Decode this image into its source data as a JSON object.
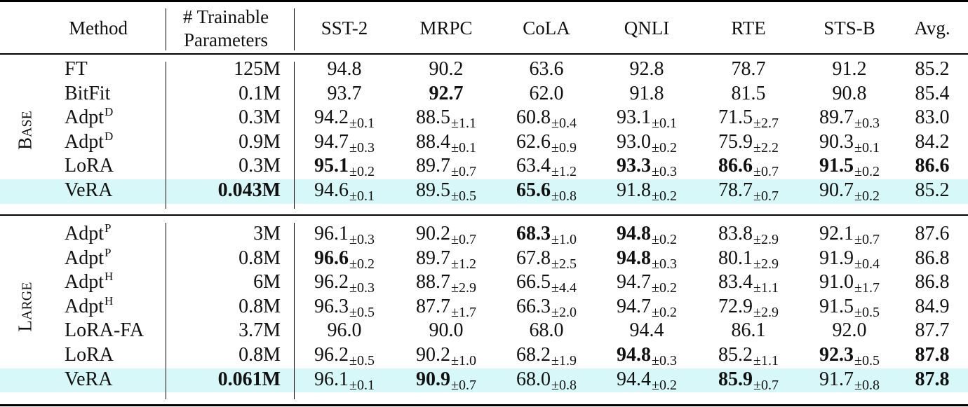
{
  "header": {
    "method": "Method",
    "params_line1": "# Trainable",
    "params_line2": "Parameters",
    "tasks": [
      "SST-2",
      "MRPC",
      "CoLA",
      "QNLI",
      "RTE",
      "STS-B"
    ],
    "avg": "Avg."
  },
  "groups": [
    {
      "label_initial": "B",
      "label_rest": "ASE",
      "rows": [
        {
          "method": "FT",
          "sup": "",
          "params": "125M",
          "params_bold": false,
          "highlight": false,
          "scores": [
            {
              "v": "94.8",
              "s": "",
              "b": false
            },
            {
              "v": "90.2",
              "s": "",
              "b": false
            },
            {
              "v": "63.6",
              "s": "",
              "b": false
            },
            {
              "v": "92.8",
              "s": "",
              "b": false
            },
            {
              "v": "78.7",
              "s": "",
              "b": false
            },
            {
              "v": "91.2",
              "s": "",
              "b": false
            }
          ],
          "avg": "85.2",
          "avg_bold": false
        },
        {
          "method": "BitFit",
          "sup": "",
          "params": "0.1M",
          "params_bold": false,
          "highlight": false,
          "scores": [
            {
              "v": "93.7",
              "s": "",
              "b": false
            },
            {
              "v": "92.7",
              "s": "",
              "b": true
            },
            {
              "v": "62.0",
              "s": "",
              "b": false
            },
            {
              "v": "91.8",
              "s": "",
              "b": false
            },
            {
              "v": "81.5",
              "s": "",
              "b": false
            },
            {
              "v": "90.8",
              "s": "",
              "b": false
            }
          ],
          "avg": "85.4",
          "avg_bold": false
        },
        {
          "method": "Adpt",
          "sup": "D",
          "params": "0.3M",
          "params_bold": false,
          "highlight": false,
          "scores": [
            {
              "v": "94.2",
              "s": "±0.1",
              "b": false
            },
            {
              "v": "88.5",
              "s": "±1.1",
              "b": false
            },
            {
              "v": "60.8",
              "s": "±0.4",
              "b": false
            },
            {
              "v": "93.1",
              "s": "±0.1",
              "b": false
            },
            {
              "v": "71.5",
              "s": "±2.7",
              "b": false
            },
            {
              "v": "89.7",
              "s": "±0.3",
              "b": false
            }
          ],
          "avg": "83.0",
          "avg_bold": false
        },
        {
          "method": "Adpt",
          "sup": "D",
          "params": "0.9M",
          "params_bold": false,
          "highlight": false,
          "scores": [
            {
              "v": "94.7",
              "s": "±0.3",
              "b": false
            },
            {
              "v": "88.4",
              "s": "±0.1",
              "b": false
            },
            {
              "v": "62.6",
              "s": "±0.9",
              "b": false
            },
            {
              "v": "93.0",
              "s": "±0.2",
              "b": false
            },
            {
              "v": "75.9",
              "s": "±2.2",
              "b": false
            },
            {
              "v": "90.3",
              "s": "±0.1",
              "b": false
            }
          ],
          "avg": "84.2",
          "avg_bold": false
        },
        {
          "method": "LoRA",
          "sup": "",
          "params": "0.3M",
          "params_bold": false,
          "highlight": false,
          "scores": [
            {
              "v": "95.1",
              "s": "±0.2",
              "b": true
            },
            {
              "v": "89.7",
              "s": "±0.7",
              "b": false
            },
            {
              "v": "63.4",
              "s": "±1.2",
              "b": false
            },
            {
              "v": "93.3",
              "s": "±0.3",
              "b": true
            },
            {
              "v": "86.6",
              "s": "±0.7",
              "b": true
            },
            {
              "v": "91.5",
              "s": "±0.2",
              "b": true
            }
          ],
          "avg": "86.6",
          "avg_bold": true
        },
        {
          "method": "VeRA",
          "sup": "",
          "params": "0.043M",
          "params_bold": true,
          "highlight": true,
          "scores": [
            {
              "v": "94.6",
              "s": "±0.1",
              "b": false
            },
            {
              "v": "89.5",
              "s": "±0.5",
              "b": false
            },
            {
              "v": "65.6",
              "s": "±0.8",
              "b": true
            },
            {
              "v": "91.8",
              "s": "±0.2",
              "b": false
            },
            {
              "v": "78.7",
              "s": "±0.7",
              "b": false
            },
            {
              "v": "90.7",
              "s": "±0.2",
              "b": false
            }
          ],
          "avg": "85.2",
          "avg_bold": false
        }
      ]
    },
    {
      "label_initial": "L",
      "label_rest": "ARGE",
      "rows": [
        {
          "method": "Adpt",
          "sup": "P",
          "params": "3M",
          "params_bold": false,
          "highlight": false,
          "scores": [
            {
              "v": "96.1",
              "s": "±0.3",
              "b": false
            },
            {
              "v": "90.2",
              "s": "±0.7",
              "b": false
            },
            {
              "v": "68.3",
              "s": "±1.0",
              "b": true
            },
            {
              "v": "94.8",
              "s": "±0.2",
              "b": true
            },
            {
              "v": "83.8",
              "s": "±2.9",
              "b": false
            },
            {
              "v": "92.1",
              "s": "±0.7",
              "b": false
            }
          ],
          "avg": "87.6",
          "avg_bold": false
        },
        {
          "method": "Adpt",
          "sup": "P",
          "params": "0.8M",
          "params_bold": false,
          "highlight": false,
          "scores": [
            {
              "v": "96.6",
              "s": "±0.2",
              "b": true
            },
            {
              "v": "89.7",
              "s": "±1.2",
              "b": false
            },
            {
              "v": "67.8",
              "s": "±2.5",
              "b": false
            },
            {
              "v": "94.8",
              "s": "±0.3",
              "b": true
            },
            {
              "v": "80.1",
              "s": "±2.9",
              "b": false
            },
            {
              "v": "91.9",
              "s": "±0.4",
              "b": false
            }
          ],
          "avg": "86.8",
          "avg_bold": false
        },
        {
          "method": "Adpt",
          "sup": "H",
          "params": "6M",
          "params_bold": false,
          "highlight": false,
          "scores": [
            {
              "v": "96.2",
              "s": "±0.3",
              "b": false
            },
            {
              "v": "88.7",
              "s": "±2.9",
              "b": false
            },
            {
              "v": "66.5",
              "s": "±4.4",
              "b": false
            },
            {
              "v": "94.7",
              "s": "±0.2",
              "b": false
            },
            {
              "v": "83.4",
              "s": "±1.1",
              "b": false
            },
            {
              "v": "91.0",
              "s": "±1.7",
              "b": false
            }
          ],
          "avg": "86.8",
          "avg_bold": false
        },
        {
          "method": "Adpt",
          "sup": "H",
          "params": "0.8M",
          "params_bold": false,
          "highlight": false,
          "scores": [
            {
              "v": "96.3",
              "s": "±0.5",
              "b": false
            },
            {
              "v": "87.7",
              "s": "±1.7",
              "b": false
            },
            {
              "v": "66.3",
              "s": "±2.0",
              "b": false
            },
            {
              "v": "94.7",
              "s": "±0.2",
              "b": false
            },
            {
              "v": "72.9",
              "s": "±2.9",
              "b": false
            },
            {
              "v": "91.5",
              "s": "±0.5",
              "b": false
            }
          ],
          "avg": "84.9",
          "avg_bold": false
        },
        {
          "method": "LoRA-FA",
          "sup": "",
          "params": "3.7M",
          "params_bold": false,
          "highlight": false,
          "scores": [
            {
              "v": "96.0",
              "s": "",
              "b": false
            },
            {
              "v": "90.0",
              "s": "",
              "b": false
            },
            {
              "v": "68.0",
              "s": "",
              "b": false
            },
            {
              "v": "94.4",
              "s": "",
              "b": false
            },
            {
              "v": "86.1",
              "s": "",
              "b": false
            },
            {
              "v": "92.0",
              "s": "",
              "b": false
            }
          ],
          "avg": "87.7",
          "avg_bold": false
        },
        {
          "method": "LoRA",
          "sup": "",
          "params": "0.8M",
          "params_bold": false,
          "highlight": false,
          "scores": [
            {
              "v": "96.2",
              "s": "±0.5",
              "b": false
            },
            {
              "v": "90.2",
              "s": "±1.0",
              "b": false
            },
            {
              "v": "68.2",
              "s": "±1.9",
              "b": false
            },
            {
              "v": "94.8",
              "s": "±0.3",
              "b": true
            },
            {
              "v": "85.2",
              "s": "±1.1",
              "b": false
            },
            {
              "v": "92.3",
              "s": "±0.5",
              "b": true
            }
          ],
          "avg": "87.8",
          "avg_bold": true
        },
        {
          "method": "VeRA",
          "sup": "",
          "params": "0.061M",
          "params_bold": true,
          "highlight": true,
          "scores": [
            {
              "v": "96.1",
              "s": "±0.1",
              "b": false
            },
            {
              "v": "90.9",
              "s": "±0.7",
              "b": true
            },
            {
              "v": "68.0",
              "s": "±0.8",
              "b": false
            },
            {
              "v": "94.4",
              "s": "±0.2",
              "b": false
            },
            {
              "v": "85.9",
              "s": "±0.7",
              "b": true
            },
            {
              "v": "91.7",
              "s": "±0.8",
              "b": false
            }
          ],
          "avg": "87.8",
          "avg_bold": true
        }
      ]
    }
  ]
}
